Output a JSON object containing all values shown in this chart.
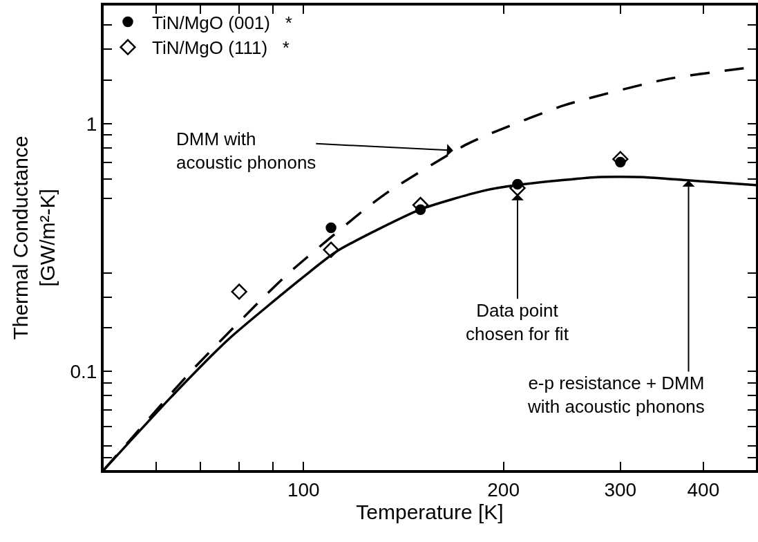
{
  "chart_data": {
    "type": "scatter",
    "xlabel": "Temperature [K]",
    "ylabel": "Thermal Conductance\n[GW/m²-K]",
    "log": "xy",
    "xlim": [
      50,
      480
    ],
    "ylim": [
      0.04,
      3
    ],
    "xticks": [
      {
        "value": 60,
        "label": null
      },
      {
        "value": 70,
        "label": null
      },
      {
        "value": 80,
        "label": null
      },
      {
        "value": 90,
        "label": null
      },
      100,
      200,
      300,
      400
    ],
    "yticks": [
      {
        "value": 0.045,
        "label": null
      },
      {
        "value": 0.05,
        "label": null
      },
      {
        "value": 0.06,
        "label": null
      },
      {
        "value": 0.07,
        "label": null
      },
      {
        "value": 0.08,
        "label": null
      },
      {
        "value": 0.09,
        "label": null
      },
      0.1,
      {
        "value": 0.15,
        "label": null
      },
      {
        "value": 0.2,
        "label": null
      },
      {
        "value": 0.25,
        "label": null
      },
      {
        "value": 0.5,
        "label": null
      },
      {
        "value": 0.6,
        "label": null
      },
      {
        "value": 0.7,
        "label": null
      },
      {
        "value": 0.8,
        "label": null
      },
      {
        "value": 0.9,
        "label": null
      },
      1,
      {
        "value": 1.5,
        "label": null
      },
      {
        "value": 2,
        "label": null
      },
      {
        "value": 2.5,
        "label": null
      }
    ],
    "grid": false,
    "legend": "top left",
    "series": [
      {
        "name": "TiN/MgO (001)   *",
        "marker": "circle",
        "color": "#000000",
        "x": [
          110,
          150,
          210,
          300
        ],
        "values": [
          0.38,
          0.45,
          0.57,
          0.7
        ]
      },
      {
        "name": "TiN/MgO (111)   *",
        "marker": "diamond",
        "color": "#000000",
        "x": [
          80,
          110,
          150,
          210,
          300
        ],
        "values": [
          0.21,
          0.31,
          0.47,
          0.55,
          0.72
        ]
      },
      {
        "type": "line",
        "line_style": "solid",
        "marker": "none",
        "color": "#000000",
        "x": [
          50,
          63.1,
          77.1,
          100,
          112.3,
          150,
          185.8,
          210,
          277,
          325,
          381.6,
          480
        ],
        "values": [
          0.04,
          0.0786,
          0.135,
          0.241,
          0.306,
          0.451,
          0.535,
          0.566,
          0.609,
          0.609,
          0.59,
          0.565
        ]
      },
      {
        "type": "line",
        "line_style": "dashed",
        "marker": "none",
        "color": "#000000",
        "x": [
          50,
          68.1,
          88,
          95.7,
          124.1,
          135.5,
          175.7,
          190.4,
          247.7,
          350.8,
          480
        ],
        "values": [
          0.04,
          0.1018,
          0.205,
          0.254,
          0.455,
          0.541,
          0.824,
          0.908,
          1.19,
          1.51,
          1.7
        ]
      }
    ],
    "annotations": [
      {
        "text": "DMM with\nacoustic phonons",
        "x": 168,
        "y": 0.78
      },
      {
        "text": "Data point\nchosen for fit",
        "x": 210,
        "y": 0.52
      },
      {
        "text": "e-p resistance + DMM\nwith acoustic phonons",
        "x": 380,
        "y": 0.59
      }
    ]
  }
}
